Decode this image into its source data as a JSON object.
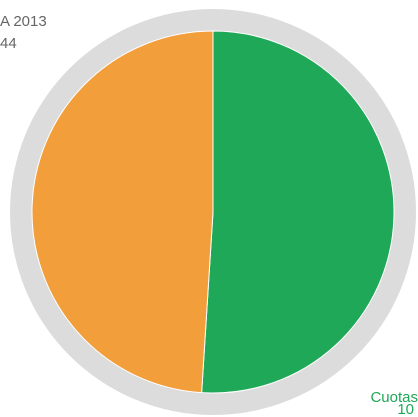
{
  "chart_data": {
    "type": "pie",
    "categories": [
      "Cuotas",
      "A 2013"
    ],
    "values": [
      51,
      49
    ],
    "colors": [
      "#1fa857",
      "#f29f3b"
    ],
    "ring_color": "#dcdcdc",
    "annotations": [
      {
        "lines": [
          "A 2013",
          "44"
        ],
        "color": "#666666"
      },
      {
        "lines": [
          "Cuotas",
          "10"
        ],
        "color": "#1fa857"
      }
    ]
  }
}
